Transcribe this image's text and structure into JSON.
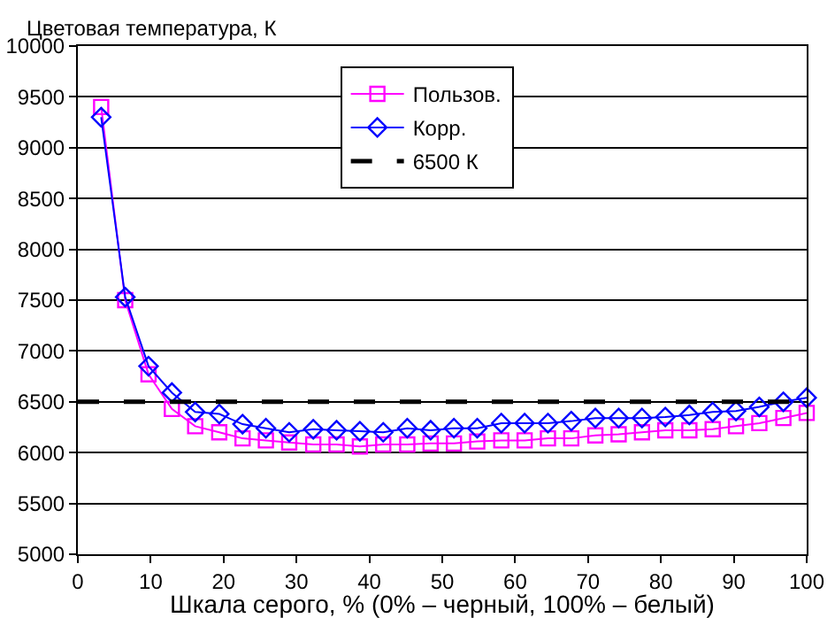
{
  "chart_data": {
    "type": "line",
    "ylabel": "Цветовая температура, К",
    "xlabel": "Шкала серого, % (0% – черный, 100% – белый)",
    "x": [
      3.2,
      6.5,
      9.7,
      12.9,
      16.1,
      19.4,
      22.6,
      25.8,
      29,
      32.3,
      35.5,
      38.7,
      41.9,
      45.2,
      48.4,
      51.6,
      54.8,
      58.1,
      61.3,
      64.5,
      67.7,
      71,
      74.2,
      77.4,
      80.6,
      83.9,
      87.1,
      90.3,
      93.5,
      96.8,
      100
    ],
    "series": [
      {
        "name": "Пользов.",
        "color": "#ff00ff",
        "marker": "square",
        "values": [
          9400,
          7500,
          6770,
          6430,
          6260,
          6200,
          6140,
          6120,
          6100,
          6080,
          6080,
          6060,
          6080,
          6080,
          6090,
          6090,
          6110,
          6120,
          6120,
          6140,
          6140,
          6170,
          6180,
          6200,
          6220,
          6220,
          6230,
          6260,
          6290,
          6340,
          6390
        ]
      },
      {
        "name": "Корр.",
        "color": "#0000ff",
        "marker": "diamond",
        "values": [
          9300,
          7530,
          6850,
          6590,
          6400,
          6380,
          6280,
          6240,
          6200,
          6230,
          6220,
          6210,
          6200,
          6240,
          6220,
          6240,
          6240,
          6290,
          6290,
          6290,
          6310,
          6340,
          6340,
          6340,
          6350,
          6370,
          6400,
          6410,
          6450,
          6500,
          6540
        ]
      }
    ],
    "ref_lines": [
      {
        "axis": "y",
        "value": 6500,
        "label": "6500 К",
        "color": "#000000",
        "line_style": "dashed"
      }
    ],
    "xlim": [
      0,
      100
    ],
    "xticks": [
      0,
      10,
      20,
      30,
      40,
      50,
      60,
      70,
      80,
      90,
      100
    ],
    "ylim": [
      5000,
      10000
    ],
    "yticks": [
      5000,
      5500,
      6000,
      6500,
      7000,
      7500,
      8000,
      8500,
      9000,
      9500,
      10000
    ],
    "grid": "y",
    "legend": "top"
  }
}
